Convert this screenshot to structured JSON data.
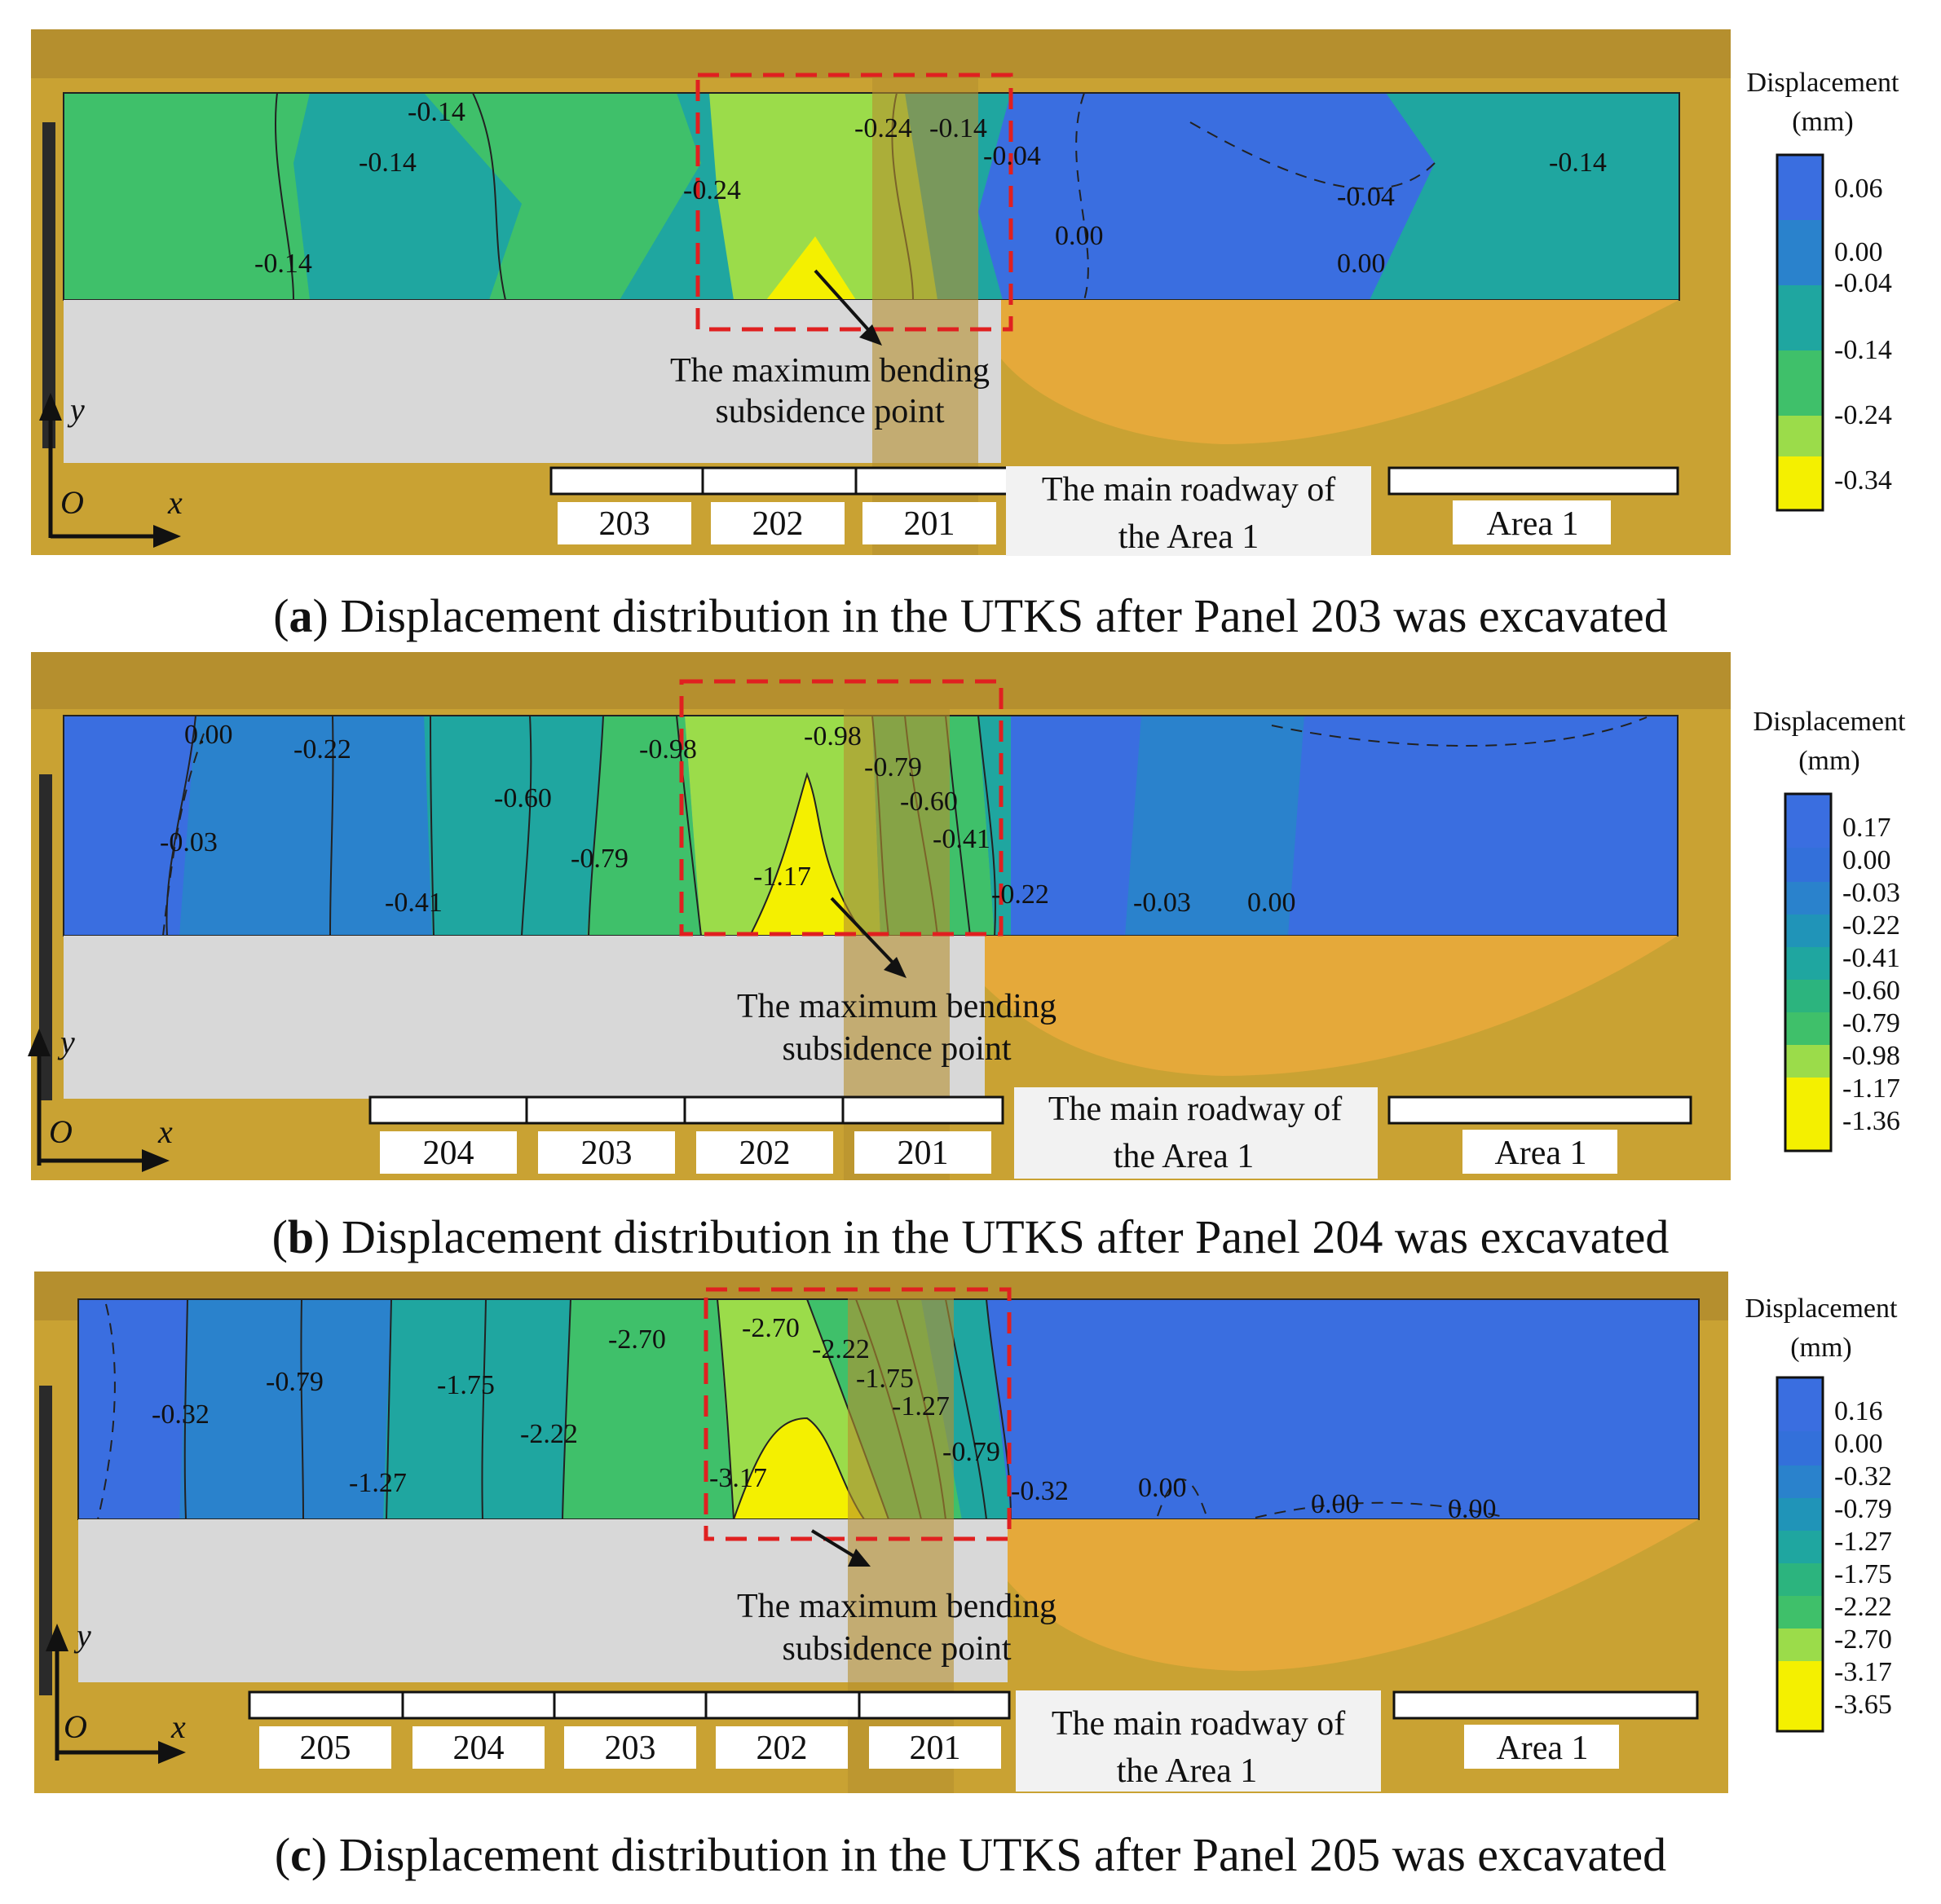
{
  "figure": {
    "panels": [
      {
        "id": "a",
        "caption_letter": "a",
        "caption_text": "Displacement distribution in the UTKS after Panel 203 was excavated",
        "legend_title_1": "Displacement",
        "legend_title_2": "(mm)",
        "legend": [
          "0.06",
          "0.00",
          "-0.04",
          "-0.14",
          "-0.24",
          "-0.34"
        ],
        "contour_labels": [
          "-0.14",
          "-0.14",
          "-0.14",
          "-0.24",
          "-0.24",
          "-0.14",
          "-0.04",
          "0.00",
          "-0.04",
          "0.00",
          "-0.14"
        ],
        "annotation_1": "The maximum bending",
        "annotation_2": "subsidence point",
        "panels_labels": [
          "203",
          "202",
          "201"
        ],
        "roadway_1": "The main roadway of",
        "roadway_2": "the Area 1",
        "area_label": "Area 1",
        "axis_y": "y",
        "axis_o": "O",
        "axis_x": "x"
      },
      {
        "id": "b",
        "caption_letter": "b",
        "caption_text": "Displacement distribution in the UTKS after Panel 204 was excavated",
        "legend_title_1": "Displacement",
        "legend_title_2": "(mm)",
        "legend": [
          "0.17",
          "0.00",
          "-0.03",
          "-0.22",
          "-0.41",
          "-0.60",
          "-0.79",
          "-0.98",
          "-1.17",
          "-1.36"
        ],
        "contour_labels": [
          "0.00",
          "-0.22",
          "-0.03",
          "-0.60",
          "-0.41",
          "-0.79",
          "-0.98",
          "-0.98",
          "-0.79",
          "-0.60",
          "-0.41",
          "-1.17",
          "-0.22",
          "-0.03",
          "0.00"
        ],
        "annotation_1": "The maximum bending",
        "annotation_2": "subsidence point",
        "panels_labels": [
          "204",
          "203",
          "202",
          "201"
        ],
        "roadway_1": "The main roadway of",
        "roadway_2": "the Area 1",
        "area_label": "Area 1",
        "axis_y": "y",
        "axis_o": "O",
        "axis_x": "x"
      },
      {
        "id": "c",
        "caption_letter": "c",
        "caption_text": "Displacement distribution in the UTKS after Panel 205 was excavated",
        "legend_title_1": "Displacement",
        "legend_title_2": "(mm)",
        "legend": [
          "0.16",
          "0.00",
          "-0.32",
          "-0.79",
          "-1.27",
          "-1.75",
          "-2.22",
          "-2.70",
          "-3.17",
          "-3.65"
        ],
        "contour_labels": [
          "-0.32",
          "-0.79",
          "-1.27",
          "-1.75",
          "-2.22",
          "-2.70",
          "-2.70",
          "-2.22",
          "-1.75",
          "-1.27",
          "-0.79",
          "-3.17",
          "-0.32",
          "0.00",
          "0.00",
          "0.00"
        ],
        "annotation_1": "The maximum bending",
        "annotation_2": "subsidence point",
        "panels_labels": [
          "205",
          "204",
          "203",
          "202",
          "201"
        ],
        "roadway_1": "The main roadway of",
        "roadway_2": "the Area 1",
        "area_label": "Area 1",
        "axis_y": "y",
        "axis_o": "O",
        "axis_x": "x"
      }
    ],
    "colors": {
      "frame": "#c9a233",
      "blue": "#3a6ee0",
      "teal": "#1fa6a0",
      "green": "#3fc06a",
      "lightgreen": "#9bdc4a",
      "yellow": "#f4f000",
      "sand": "#e5a93a",
      "rock": "#d8d8d8"
    }
  }
}
